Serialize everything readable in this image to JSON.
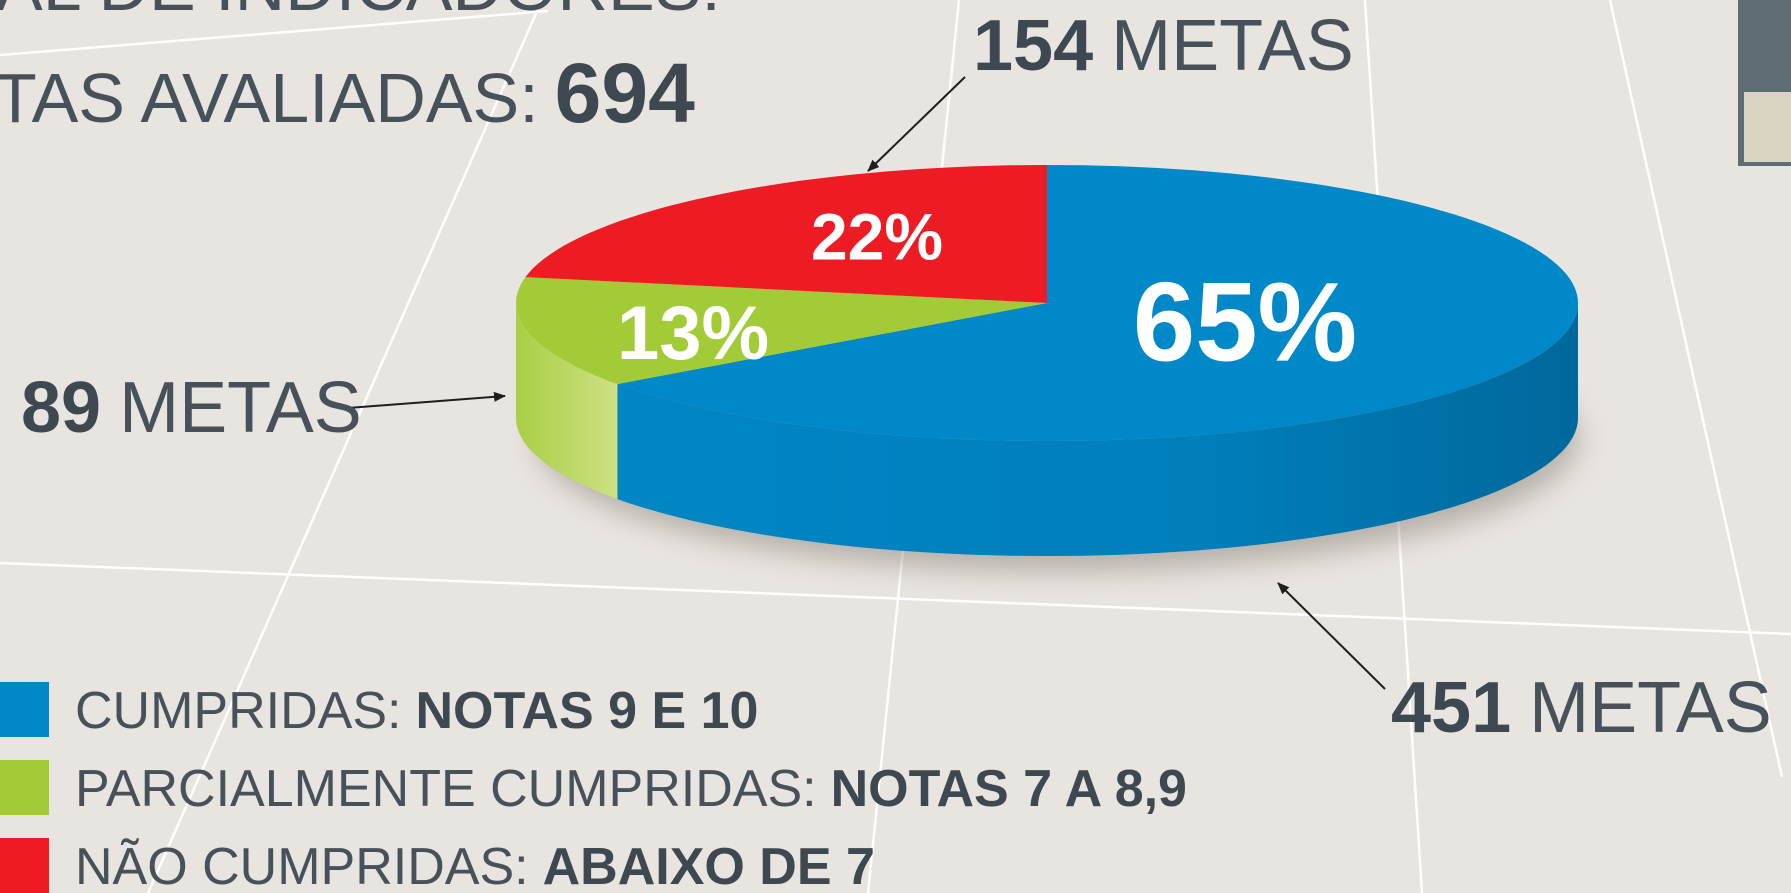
{
  "header": {
    "line1_label": "AL DE INDICADORES:",
    "line2_label": "TAS AVALIADAS:",
    "line2_value": 694
  },
  "chart_data": {
    "type": "pie",
    "categories": [
      "CUMPRIDAS:",
      "PARCIALMENTE CUMPRIDAS:",
      "NÃO CUMPRIDAS:"
    ],
    "category_details": [
      "NOTAS 9 E 10",
      "NOTAS 7 A 8,9",
      "ABAIXO DE 7"
    ],
    "values": [
      65,
      13,
      22
    ],
    "value_labels": [
      "65%",
      "13%",
      "22%"
    ],
    "counts": [
      451,
      89,
      154
    ],
    "count_unit": "METAS",
    "colors": [
      "#0088c8",
      "#a3cb38",
      "#ed1c24"
    ]
  }
}
